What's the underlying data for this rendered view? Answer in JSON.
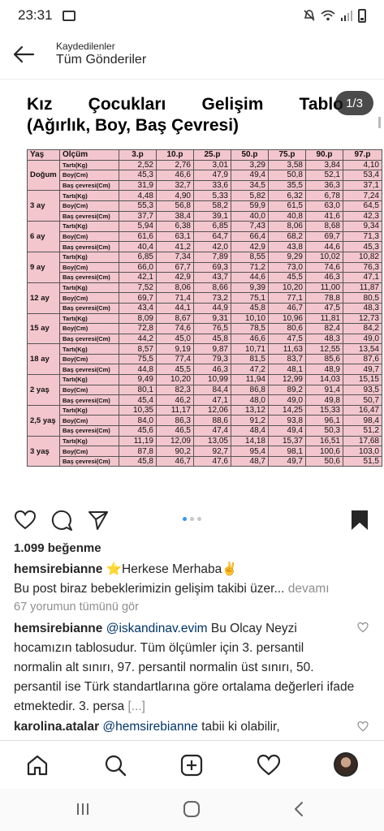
{
  "status": {
    "time": "23:31"
  },
  "header": {
    "sup": "Kaydedilenler",
    "title": "Tüm Gönderiler"
  },
  "image": {
    "title_words": [
      "Kız",
      "Çocukları",
      "Gelişim",
      "Tablo"
    ],
    "title_line2": "(Ağırlık, Boy, Baş Çevresi)",
    "counter": "1/3",
    "table": {
      "headers": [
        "Yaş",
        "Ölçüm",
        "3.p",
        "10.p",
        "25.p",
        "50.p",
        "75.p",
        "90.p",
        "97.p"
      ],
      "groups": [
        {
          "age": "Doğum",
          "rows": [
            {
              "m": "Tartı(Kg)",
              "v": [
                "2,52",
                "2,76",
                "3,01",
                "3,29",
                "3,58",
                "3,84",
                "4,10"
              ]
            },
            {
              "m": "Boy(Cm)",
              "v": [
                "45,3",
                "46,6",
                "47,9",
                "49,4",
                "50,8",
                "52,1",
                "53,4"
              ]
            },
            {
              "m": "Baş çevresi(Cm)",
              "v": [
                "31,9",
                "32,7",
                "33,6",
                "34,5",
                "35,5",
                "36,3",
                "37,1"
              ]
            }
          ]
        },
        {
          "age": "3 ay",
          "rows": [
            {
              "m": "Tartı(Kg)",
              "v": [
                "4,48",
                "4,90",
                "5,33",
                "5,82",
                "6,32",
                "6,78",
                "7,24"
              ]
            },
            {
              "m": "Boy(Cm)",
              "v": [
                "55,3",
                "56,8",
                "58,2",
                "59,9",
                "61,5",
                "63,0",
                "64,5"
              ]
            },
            {
              "m": "Baş çevresi(Cm)",
              "v": [
                "37,7",
                "38,4",
                "39,1",
                "40,0",
                "40,8",
                "41,6",
                "42,3"
              ]
            }
          ]
        },
        {
          "age": "6 ay",
          "rows": [
            {
              "m": "Tartı(Kg)",
              "v": [
                "5,94",
                "6,38",
                "6,85",
                "7,43",
                "8,06",
                "8,68",
                "9,34"
              ]
            },
            {
              "m": "Boy(Cm)",
              "v": [
                "61,6",
                "63,1",
                "64,7",
                "66,4",
                "68,2",
                "69,7",
                "71,3"
              ]
            },
            {
              "m": "Baş çevresi(Cm)",
              "v": [
                "40,4",
                "41,2",
                "42,0",
                "42,9",
                "43,8",
                "44,6",
                "45,3"
              ]
            }
          ]
        },
        {
          "age": "9 ay",
          "rows": [
            {
              "m": "Tartı(Kg)",
              "v": [
                "6,85",
                "7,34",
                "7,89",
                "8,55",
                "9,29",
                "10,02",
                "10,82"
              ]
            },
            {
              "m": "Boy(Cm)",
              "v": [
                "66,0",
                "67,7",
                "69,3",
                "71,2",
                "73,0",
                "74,6",
                "76,3"
              ]
            },
            {
              "m": "Baş çevresi(Cm)",
              "v": [
                "42,1",
                "42,9",
                "43,7",
                "44,6",
                "45,5",
                "46,3",
                "47,1"
              ]
            }
          ]
        },
        {
          "age": "12 ay",
          "rows": [
            {
              "m": "Tartı(Kg)",
              "v": [
                "7,52",
                "8,06",
                "8,66",
                "9,39",
                "10,20",
                "11,00",
                "11,87"
              ]
            },
            {
              "m": "Boy(Cm)",
              "v": [
                "69,7",
                "71,4",
                "73,2",
                "75,1",
                "77,1",
                "78,8",
                "80,5"
              ]
            },
            {
              "m": "Baş çevresi(Cm)",
              "v": [
                "43,4",
                "44,1",
                "44,9",
                "45,8",
                "46,7",
                "47,5",
                "48,3"
              ]
            }
          ]
        },
        {
          "age": "15 ay",
          "rows": [
            {
              "m": "Tartı(Kg)",
              "v": [
                "8,09",
                "8,67",
                "9,31",
                "10,10",
                "10,96",
                "11,81",
                "12,73"
              ]
            },
            {
              "m": "Boy(Cm)",
              "v": [
                "72,8",
                "74,6",
                "76,5",
                "78,5",
                "80,6",
                "82,4",
                "84,2"
              ]
            },
            {
              "m": "Baş çevresi(Cm)",
              "v": [
                "44,2",
                "45,0",
                "45,8",
                "46,6",
                "47,5",
                "48,3",
                "49,0"
              ]
            }
          ]
        },
        {
          "age": "18 ay",
          "rows": [
            {
              "m": "Tartı(Kg)",
              "v": [
                "8,57",
                "9,19",
                "9,87",
                "10,71",
                "11,63",
                "12,55",
                "13,54"
              ]
            },
            {
              "m": "Boy(Cm)",
              "v": [
                "75,5",
                "77,4",
                "79,3",
                "81,5",
                "83,7",
                "85,6",
                "87,6"
              ]
            },
            {
              "m": "Baş çevresi(Cm)",
              "v": [
                "44,8",
                "45,5",
                "46,3",
                "47,2",
                "48,1",
                "48,9",
                "49,7"
              ]
            }
          ]
        },
        {
          "age": "2 yaş",
          "rows": [
            {
              "m": "Tartı(Kg)",
              "v": [
                "9,49",
                "10,20",
                "10,99",
                "11,94",
                "12,99",
                "14,03",
                "15,15"
              ]
            },
            {
              "m": "Boy(Cm)",
              "v": [
                "80,1",
                "82,3",
                "84,4",
                "86,8",
                "89,2",
                "91,4",
                "93,5"
              ]
            },
            {
              "m": "Baş çevresi(Cm)",
              "v": [
                "45,4",
                "46,2",
                "47,1",
                "48,0",
                "49,0",
                "49,8",
                "50,7"
              ]
            }
          ]
        },
        {
          "age": "2,5 yaş",
          "rows": [
            {
              "m": "Tartı(Kg)",
              "v": [
                "10,35",
                "11,17",
                "12,06",
                "13,12",
                "14,25",
                "15,33",
                "16,47"
              ]
            },
            {
              "m": "Boy(Cm)",
              "v": [
                "84,0",
                "86,3",
                "88,6",
                "91,2",
                "93,8",
                "96,1",
                "98,4"
              ]
            },
            {
              "m": "Baş çevresi(Cm)",
              "v": [
                "45,6",
                "46,5",
                "47,4",
                "48,4",
                "49,4",
                "50,3",
                "51,2"
              ]
            }
          ]
        },
        {
          "age": "3 yaş",
          "rows": [
            {
              "m": "Tartı(Kg)",
              "v": [
                "11,19",
                "12,09",
                "13,05",
                "14,18",
                "15,37",
                "16,51",
                "17,68"
              ]
            },
            {
              "m": "Boy(Cm)",
              "v": [
                "87,8",
                "90,2",
                "92,7",
                "95,4",
                "98,1",
                "100,6",
                "103,0"
              ]
            },
            {
              "m": "Baş çevresi(Cm)",
              "v": [
                "45,8",
                "46,7",
                "47,6",
                "48,7",
                "49,7",
                "50,6",
                "51,5"
              ]
            }
          ]
        }
      ]
    }
  },
  "post": {
    "likes": "1.099 beğenme",
    "caption_user": "hemsirebianne",
    "caption_text": "⭐Herkese Merhaba✌️",
    "caption_line2": "Bu post biraz bebeklerimizin gelişim takibi üzer...",
    "caption_more": " devamı",
    "view_comments": "67 yorumun tümünü gör",
    "comment1_user": "hemsirebianne",
    "comment1_mention": "@iskandinav.evim",
    "comment1_text": " Bu Olcay Neyzi hocamızın tablosudur. Tüm  ölçümler için 3. persantil normalin  alt  sınırı,  97. persantil normalin üst  sınırı, 50. persantil  ise  Türk standartlarına göre ortalama değerleri ifade  etmektedir. 3. persa ",
    "comment1_more": "[...]",
    "comment2_user": "karolina.atalar",
    "comment2_mention": "@hemsirebianne",
    "comment2_text": " tabii ki olabilir,"
  },
  "colors": {
    "table_bg": "#f3c6cd",
    "mention": "#003569",
    "dot_active": "#3897f0"
  }
}
